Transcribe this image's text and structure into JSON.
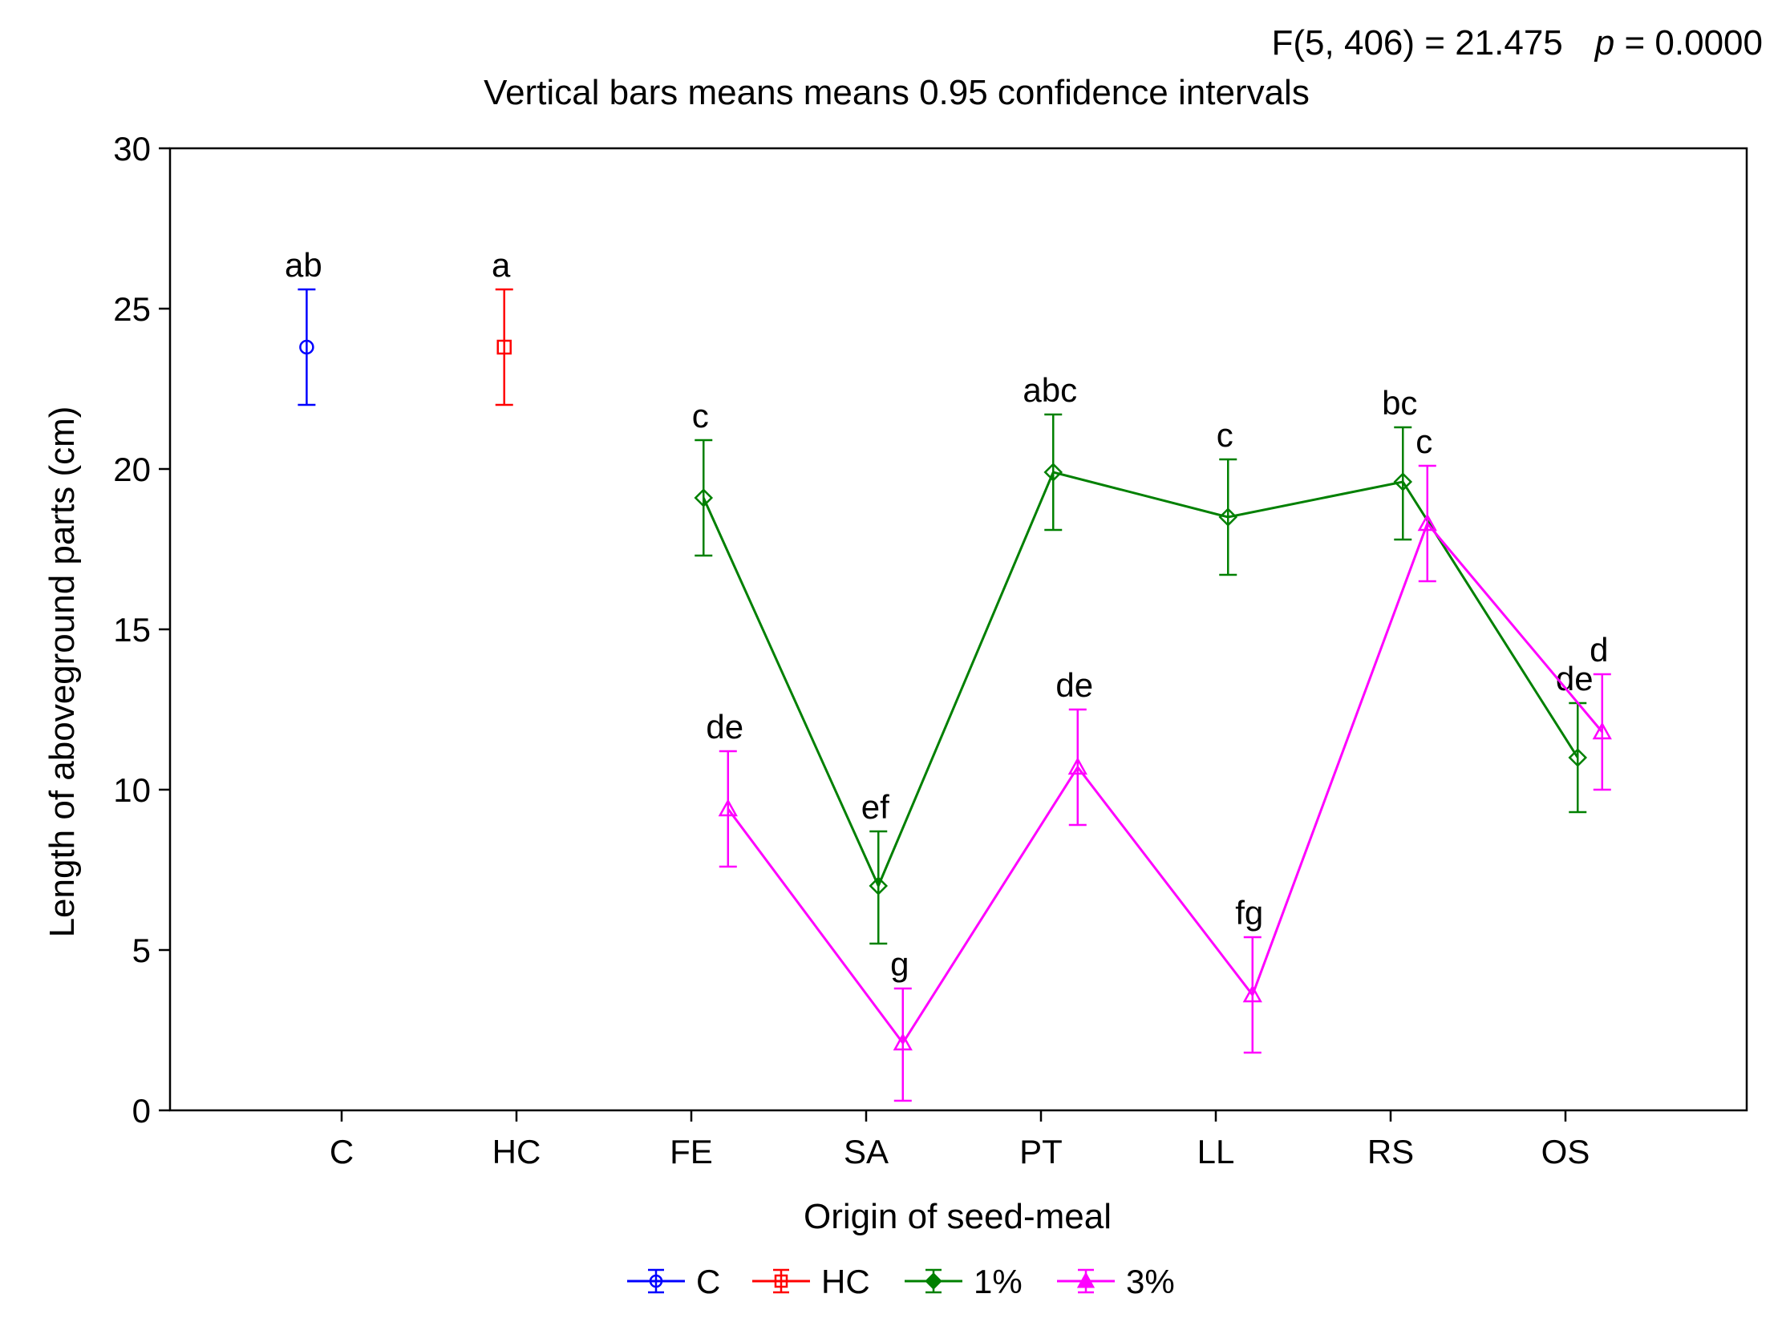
{
  "chart_data": {
    "type": "line",
    "stat_line": "F(5, 406) = 21.475",
    "p_label": "p",
    "p_value_text": " = 0.0000",
    "subtitle": "Vertical bars means means 0.95 confidence intervals",
    "xlabel": "Origin of seed-meal",
    "ylabel": "Length of aboveground parts (cm)",
    "ylim": [
      0,
      30
    ],
    "yticks": [
      0,
      5,
      10,
      15,
      20,
      25,
      30
    ],
    "categories": [
      "C",
      "HC",
      "FE",
      "SA",
      "PT",
      "LL",
      "RS",
      "OS"
    ],
    "series": [
      {
        "name": "C",
        "color": "#0000ff",
        "marker": "circle",
        "offset": -0.2,
        "connected": false,
        "points": [
          {
            "category": "C",
            "mean": 23.8,
            "lower": 22.0,
            "upper": 25.6,
            "label": "ab"
          }
        ]
      },
      {
        "name": "HC",
        "color": "#ff0000",
        "marker": "square",
        "offset": -0.07,
        "connected": false,
        "points": [
          {
            "category": "HC",
            "mean": 23.8,
            "lower": 22.0,
            "upper": 25.6,
            "label": "a"
          }
        ]
      },
      {
        "name": "1%",
        "color": "#008000",
        "marker": "diamond",
        "offset": 0.07,
        "connected": true,
        "points": [
          {
            "category": "FE",
            "mean": 19.1,
            "lower": 17.3,
            "upper": 20.9,
            "label": "c"
          },
          {
            "category": "SA",
            "mean": 7.0,
            "lower": 5.2,
            "upper": 8.7,
            "label": "ef"
          },
          {
            "category": "PT",
            "mean": 19.9,
            "lower": 18.1,
            "upper": 21.7,
            "label": "abc"
          },
          {
            "category": "LL",
            "mean": 18.5,
            "lower": 16.7,
            "upper": 20.3,
            "label": "c"
          },
          {
            "category": "RS",
            "mean": 19.6,
            "lower": 17.8,
            "upper": 21.3,
            "label": "bc"
          },
          {
            "category": "OS",
            "mean": 11.0,
            "lower": 9.3,
            "upper": 12.7,
            "label": "de"
          }
        ]
      },
      {
        "name": "3%",
        "color": "#ff00ff",
        "marker": "triangle",
        "offset": 0.21,
        "connected": true,
        "points": [
          {
            "category": "FE",
            "mean": 9.4,
            "lower": 7.6,
            "upper": 11.2,
            "label": "de"
          },
          {
            "category": "SA",
            "mean": 2.1,
            "lower": 0.3,
            "upper": 3.8,
            "label": "g"
          },
          {
            "category": "PT",
            "mean": 10.7,
            "lower": 8.9,
            "upper": 12.5,
            "label": "de"
          },
          {
            "category": "LL",
            "mean": 3.6,
            "lower": 1.8,
            "upper": 5.4,
            "label": "fg"
          },
          {
            "category": "RS",
            "mean": 18.3,
            "lower": 16.5,
            "upper": 20.1,
            "label": "c"
          },
          {
            "category": "OS",
            "mean": 11.8,
            "lower": 10.0,
            "upper": 13.6,
            "label": "d"
          }
        ]
      }
    ],
    "legend": {
      "position": "bottom-center",
      "entries": [
        "C",
        "HC",
        "1%",
        "3%"
      ]
    }
  }
}
